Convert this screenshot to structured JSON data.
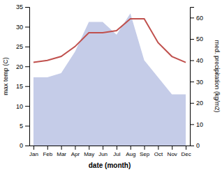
{
  "chart_data": {
    "type": "line",
    "categories": [
      "Jan",
      "Feb",
      "Mar",
      "Apr",
      "May",
      "Jun",
      "Jul",
      "Aug",
      "Sep",
      "Oct",
      "Nov",
      "Dec"
    ],
    "xlabel": "date (month)",
    "ylabel": "max temp (C)",
    "y2label": "med. precipitation (kg/m2)",
    "series": [
      {
        "type": "area",
        "axis": "y2",
        "color": "#c5cce8",
        "values": [
          32,
          32,
          34,
          44,
          58,
          58,
          52,
          62,
          40,
          32,
          24,
          24
        ]
      },
      {
        "type": "line",
        "color": "#c0504d",
        "values": [
          21.0,
          21.5,
          22.5,
          25.0,
          28.5,
          28.5,
          29.0,
          32.0,
          32.0,
          26.0,
          22.5,
          21.0
        ]
      }
    ],
    "ylim": [
      0,
      35
    ],
    "yticks": [
      0,
      5,
      10,
      15,
      20,
      25,
      30,
      35
    ],
    "y2lim": [
      0,
      65
    ],
    "y2ticks": [
      0,
      10,
      20,
      30,
      40,
      50,
      60
    ],
    "grid": false
  }
}
